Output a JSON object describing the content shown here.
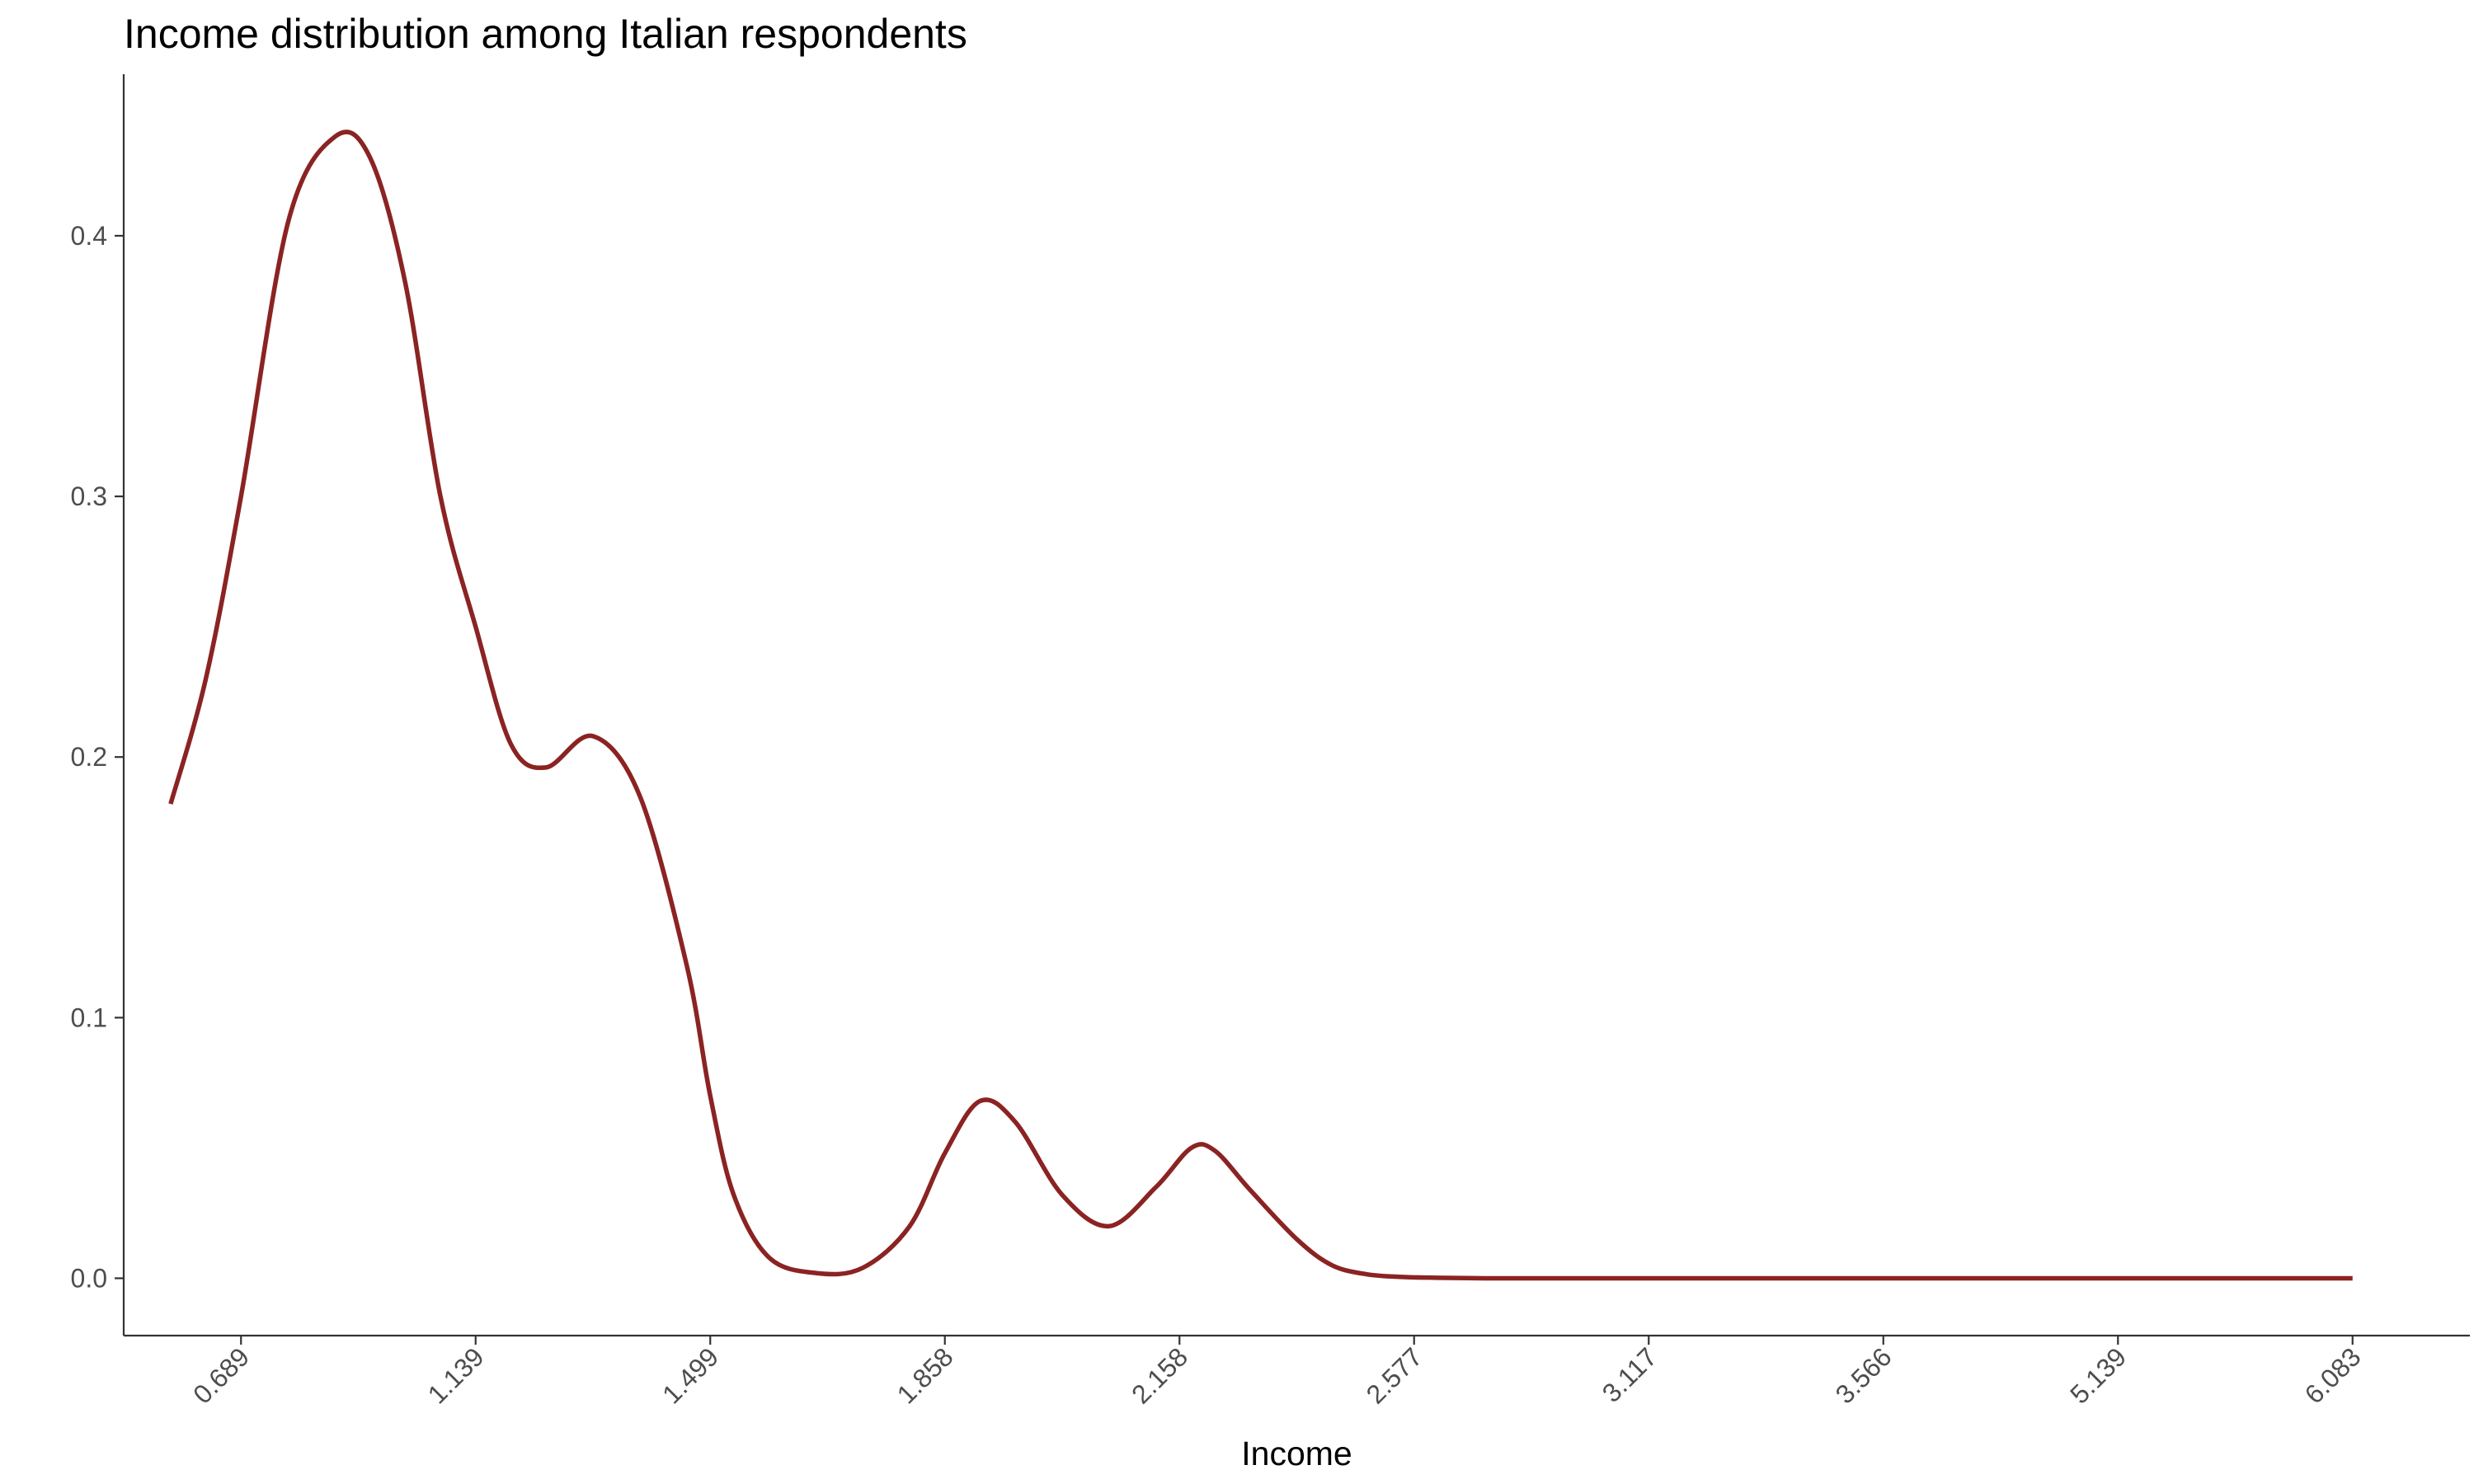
{
  "chart_data": {
    "type": "line",
    "title": "Income distribution among Italian respondents",
    "xlabel": "Income",
    "ylabel": "",
    "ylim": [
      0,
      0.45
    ],
    "y_ticks": [
      0.0,
      0.1,
      0.2,
      0.3,
      0.4
    ],
    "y_tick_labels": [
      "0.0",
      "0.1",
      "0.2",
      "0.3",
      "0.4"
    ],
    "x_tick_labels": [
      "0.689",
      "1.139",
      "1.499",
      "1.858",
      "2.158",
      "2.577",
      "3.117",
      "3.566",
      "5.139",
      "6.083"
    ],
    "x_tick_positions": [
      1,
      2,
      3,
      4,
      5,
      6,
      7,
      8,
      9,
      10
    ],
    "xlim": [
      0.5,
      10.5
    ],
    "grid": false,
    "legend": "none",
    "series": [
      {
        "color": "#8b2323",
        "x": [
          0.7,
          0.85,
          1.0,
          1.2,
          1.4,
          1.55,
          1.7,
          1.85,
          2.0,
          2.15,
          2.3,
          2.5,
          2.7,
          2.9,
          3.0,
          3.1,
          3.25,
          3.45,
          3.65,
          3.85,
          4.0,
          4.15,
          4.3,
          4.5,
          4.7,
          4.9,
          5.05,
          5.15,
          5.3,
          5.5,
          5.65,
          5.8,
          5.95,
          6.1,
          6.3,
          6.5,
          6.7,
          6.9,
          7.2,
          7.5,
          8.0,
          9.0,
          10.0
        ],
        "y": [
          0.182,
          0.23,
          0.3,
          0.405,
          0.438,
          0.43,
          0.382,
          0.3,
          0.25,
          0.205,
          0.196,
          0.208,
          0.185,
          0.12,
          0.07,
          0.032,
          0.008,
          0.002,
          0.004,
          0.02,
          0.048,
          0.068,
          0.06,
          0.032,
          0.02,
          0.035,
          0.05,
          0.049,
          0.034,
          0.015,
          0.005,
          0.0015,
          0.0005,
          0.0002,
          0.0,
          0.0,
          0.0,
          0.0,
          0.0,
          0.0,
          0.0,
          0.0,
          0.0
        ]
      }
    ]
  }
}
